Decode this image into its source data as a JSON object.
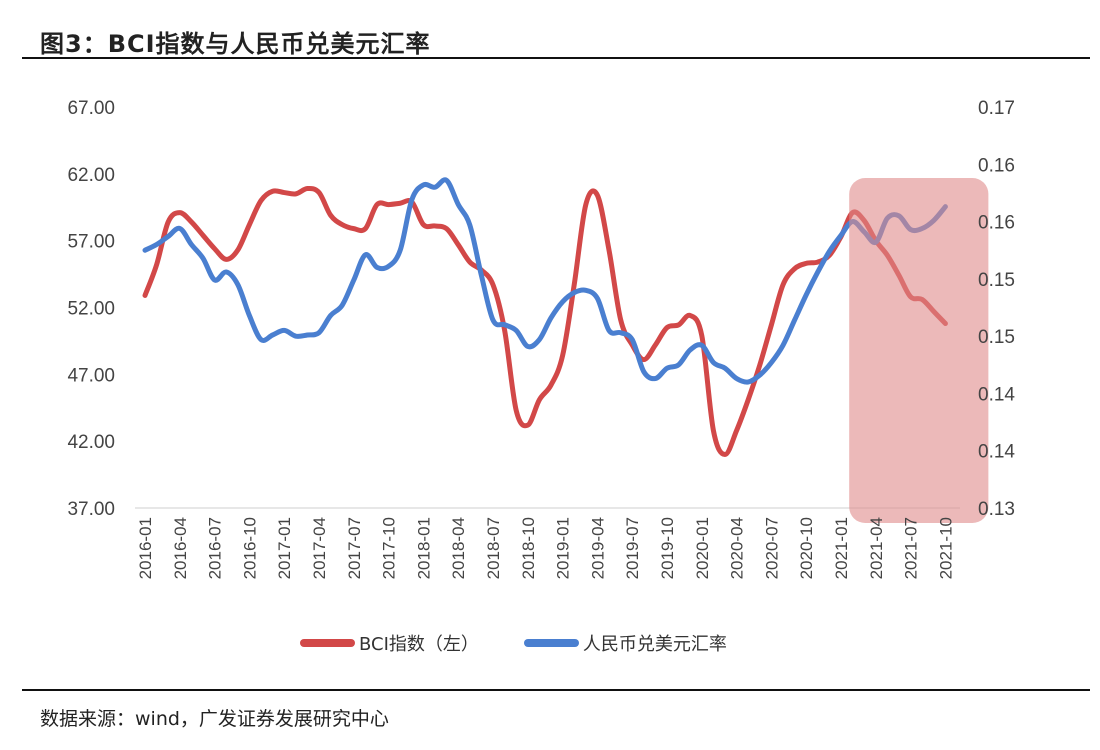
{
  "title": "图3：BCI指数与人民币兑美元汇率",
  "source": "数据来源：wind，广发证券发展研究中心",
  "chart_data": {
    "type": "line",
    "title": "",
    "xlabel": "",
    "ylabel_left": "",
    "ylabel_right": "",
    "x_start": "2016-01",
    "x_end": "2021-10",
    "x_frequency": "monthly",
    "x_tick_labels": [
      "2016-01",
      "2016-04",
      "2016-07",
      "2016-10",
      "2017-01",
      "2017-04",
      "2017-07",
      "2017-10",
      "2018-01",
      "2018-04",
      "2018-07",
      "2018-10",
      "2019-01",
      "2019-04",
      "2019-07",
      "2019-10",
      "2020-01",
      "2020-04",
      "2020-07",
      "2020-10",
      "2021-01",
      "2021-04",
      "2021-07",
      "2021-10"
    ],
    "y_left": {
      "range": [
        37,
        67
      ],
      "tick_labels": [
        "67.00",
        "62.00",
        "57.00",
        "52.00",
        "47.00",
        "42.00",
        "37.00"
      ]
    },
    "y_right": {
      "range": [
        0.13,
        0.165
      ],
      "tick_labels": [
        "0.17",
        "0.16",
        "0.16",
        "0.15",
        "0.15",
        "0.14",
        "0.14",
        "0.13"
      ]
    },
    "grid": false,
    "legend_position": "bottom",
    "highlight_region": {
      "from": "2021-03",
      "to": "2021-10",
      "color": "#e08a8a"
    },
    "series": [
      {
        "name": "BCI指数（左）",
        "axis": "left",
        "color": "#d24848",
        "values": [
          52.9,
          55.2,
          58.4,
          59.1,
          58.4,
          57.4,
          56.4,
          55.6,
          56.3,
          58.2,
          60.0,
          60.7,
          60.6,
          60.5,
          60.9,
          60.6,
          58.9,
          58.2,
          57.9,
          57.9,
          59.7,
          59.7,
          59.8,
          59.9,
          58.2,
          58.1,
          57.9,
          56.7,
          55.4,
          54.8,
          53.7,
          50.3,
          44.3,
          43.2,
          45.1,
          46.2,
          48.4,
          53.7,
          59.7,
          60.4,
          56.3,
          51.1,
          49.2,
          48.1,
          49.2,
          50.5,
          50.7,
          51.4,
          49.9,
          42.8,
          41.0,
          42.8,
          45.1,
          47.7,
          50.7,
          53.7,
          54.9,
          55.3,
          55.4,
          55.9,
          57.3,
          59.1,
          58.5,
          57.0,
          55.9,
          54.4,
          52.8,
          52.6,
          51.7,
          50.8
        ]
      },
      {
        "name": "人民币兑美元汇率",
        "axis": "right",
        "color": "#4a7fd0",
        "values": [
          0.1525,
          0.153,
          0.1537,
          0.1544,
          0.153,
          0.1518,
          0.1499,
          0.1506,
          0.1495,
          0.1468,
          0.1447,
          0.1451,
          0.1455,
          0.145,
          0.1451,
          0.1453,
          0.1468,
          0.1477,
          0.1499,
          0.1521,
          0.151,
          0.1511,
          0.1525,
          0.1569,
          0.1582,
          0.158,
          0.1586,
          0.1565,
          0.1547,
          0.1503,
          0.1464,
          0.146,
          0.1455,
          0.1441,
          0.1447,
          0.1466,
          0.148,
          0.1488,
          0.149,
          0.1483,
          0.1455,
          0.1453,
          0.1447,
          0.1419,
          0.1413,
          0.1422,
          0.1425,
          0.1438,
          0.1442,
          0.1427,
          0.1422,
          0.1413,
          0.141,
          0.1416,
          0.1427,
          0.1442,
          0.1464,
          0.1486,
          0.1506,
          0.1524,
          0.1538,
          0.155,
          0.1541,
          0.1532,
          0.1553,
          0.1555,
          0.1543,
          0.1544,
          0.1551,
          0.1563
        ]
      }
    ]
  }
}
